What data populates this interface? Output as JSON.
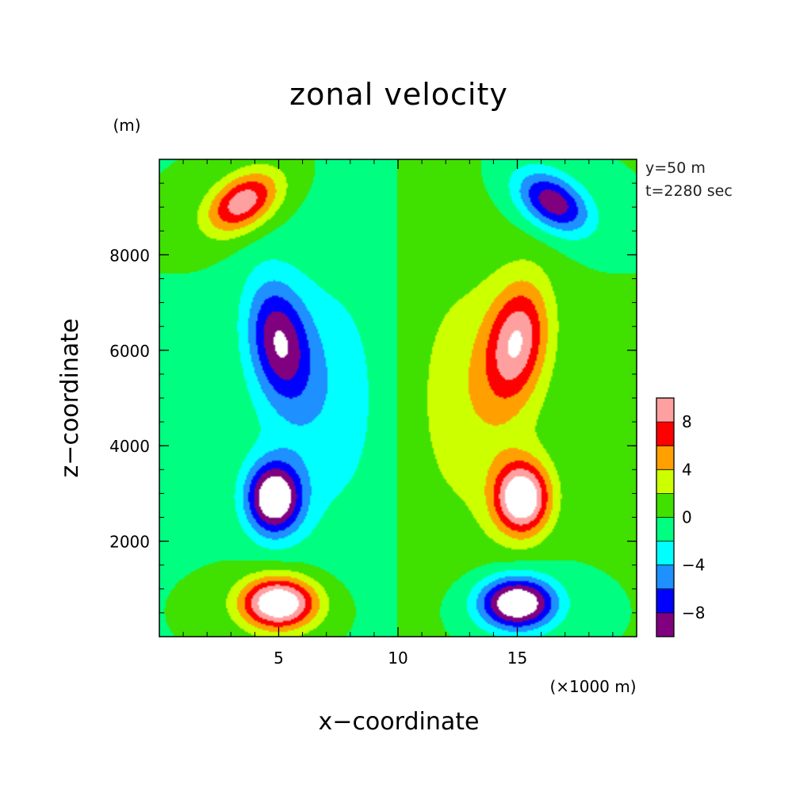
{
  "chart_data": {
    "type": "heatmap",
    "title": "zonal velocity",
    "xlabel": "x−coordinate",
    "ylabel": "z−coordinate",
    "x_unit": "(×1000 m)",
    "y_unit": "(m)",
    "info": [
      "y=50  m",
      "t=2280 sec"
    ],
    "xlim": [
      0,
      20
    ],
    "ylim": [
      0,
      10000
    ],
    "x_ticks": [
      5,
      10,
      15
    ],
    "x_tick_labels": [
      "5",
      "10",
      "15"
    ],
    "y_ticks": [
      2000,
      4000,
      6000,
      8000
    ],
    "y_tick_labels": [
      "2000",
      "4000",
      "6000",
      "8000"
    ],
    "grid": false,
    "colorbar": {
      "levels": [
        -10,
        -8,
        -6,
        -4,
        -2,
        0,
        2,
        4,
        6,
        8,
        10
      ],
      "colors": [
        "#800080",
        "#0000ff",
        "#1e90ff",
        "#00ffff",
        "#00ff80",
        "#40e000",
        "#ccff00",
        "#ffa000",
        "#ff0000",
        "#ffa0a0"
      ],
      "over_color": "#ffffff",
      "under_color": "#ffffff",
      "labels": [
        {
          "value": -8,
          "text": "−8"
        },
        {
          "value": -4,
          "text": "−4"
        },
        {
          "value": 0,
          "text": "0"
        },
        {
          "value": 4,
          "text": "4"
        },
        {
          "value": 8,
          "text": "8"
        }
      ]
    },
    "features": [
      {
        "x": 15.0,
        "z": 6200,
        "sx": 1.25,
        "sz": 1250,
        "a": 8.5,
        "tilt": -0.25
      },
      {
        "x": 15.2,
        "z": 2900,
        "sx": 1.15,
        "sz": 750,
        "a": 12.5,
        "tilt": 0
      },
      {
        "x": 16.5,
        "z": 9100,
        "sx": 1.4,
        "sz": 650,
        "a": -9.5,
        "tilt": 0.45
      },
      {
        "x": 15.0,
        "z": 700,
        "sx": 1.6,
        "sz": 550,
        "a": -13.5,
        "tilt": 0
      },
      {
        "x": 13.0,
        "z": 5000,
        "sx": 3.0,
        "sz": 2800,
        "a": 3.5,
        "tilt": 0
      }
    ]
  }
}
